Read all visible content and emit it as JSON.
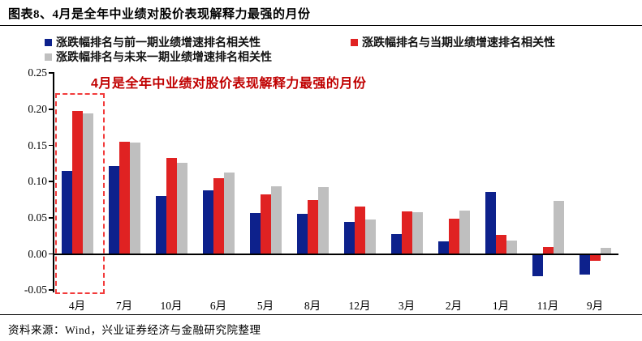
{
  "header": {
    "title": "图表8、4月是全年中业绩对股价表现解释力最强的月份"
  },
  "footer": {
    "source": "资料来源：Wind，兴业证券经济与金融研究院整理"
  },
  "chart_data": {
    "type": "bar",
    "title": "图表8、4月是全年中业绩对股价表现解释力最强的月份",
    "annotation": "4月是全年中业绩对股价表现解释力最强的月份",
    "annotation_color": "#C00000",
    "highlight_category": "4月",
    "highlight_box_color": "#F23B3B",
    "legend_position": "top",
    "grid": false,
    "categories": [
      "4月",
      "7月",
      "10月",
      "6月",
      "5月",
      "8月",
      "12月",
      "3月",
      "2月",
      "1月",
      "11月",
      "9月"
    ],
    "series": [
      {
        "name": "涨跌幅排名与前一期业绩增速排名相关性",
        "color": "#0D218C",
        "values": [
          0.115,
          0.122,
          0.08,
          0.088,
          0.057,
          0.055,
          0.044,
          0.027,
          0.017,
          0.086,
          -0.031,
          -0.029
        ]
      },
      {
        "name": "涨跌幅排名与当期业绩增速排名相关性",
        "color": "#E02222",
        "values": [
          0.198,
          0.155,
          0.133,
          0.105,
          0.082,
          0.074,
          0.066,
          0.059,
          0.049,
          0.026,
          0.01,
          -0.01
        ]
      },
      {
        "name": "涨跌幅排名与未来一期业绩增速排名相关性",
        "color": "#BFBFBF",
        "values": [
          0.194,
          0.154,
          0.126,
          0.112,
          0.093,
          0.092,
          0.048,
          0.058,
          0.06,
          0.019,
          0.073,
          0.008
        ]
      }
    ],
    "ylim": [
      -0.05,
      0.25
    ],
    "yticks": [
      0.25,
      0.2,
      0.15,
      0.1,
      0.05,
      0.0,
      -0.05
    ],
    "xlabel": "",
    "ylabel": ""
  }
}
